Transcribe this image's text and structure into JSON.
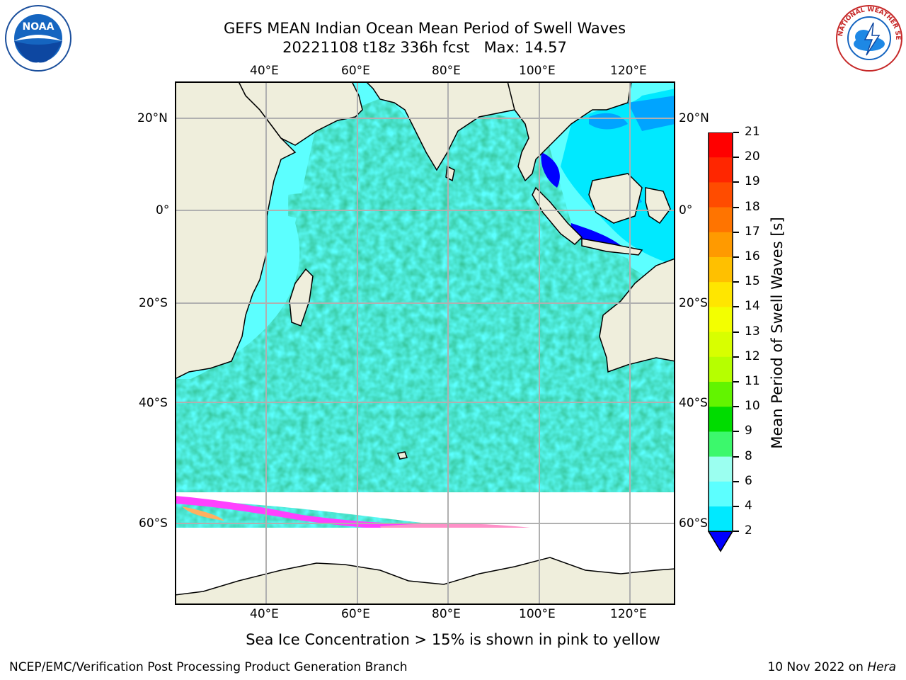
{
  "title": {
    "line1": "GEFS MEAN Indian Ocean Mean Period of Swell Waves",
    "line2": "20221108 t18z 336h fcst   Max: 14.57"
  },
  "logos": {
    "left": {
      "text": "NOAA",
      "icon": "noaa-logo-icon"
    },
    "right": {
      "text": "NATIONAL WEATHER SERVICE",
      "icon": "nws-logo-icon"
    }
  },
  "map": {
    "lon_ticks_top": [
      "40°E",
      "60°E",
      "80°E",
      "100°E",
      "120°E"
    ],
    "lon_ticks_bottom": [
      "40°E",
      "60°E",
      "80°E",
      "100°E",
      "120°E"
    ],
    "lat_ticks_left": [
      "20°N",
      "0°",
      "20°S",
      "40°S",
      "60°S"
    ],
    "lat_ticks_right": [
      "20°N",
      "0°",
      "20°S",
      "40°S",
      "60°S"
    ],
    "land_color": "#efeedc",
    "grid_color": "#b0b0b0"
  },
  "colorbar": {
    "title": "Mean Period of Swell Waves [s]",
    "levels": [
      "21",
      "20",
      "19",
      "18",
      "17",
      "16",
      "15",
      "14",
      "13",
      "12",
      "11",
      "10",
      "9",
      "8",
      "6",
      "4",
      "2"
    ],
    "colors": [
      "#ff0000",
      "#ff2600",
      "#ff4c00",
      "#ff7400",
      "#ff9a00",
      "#ffc000",
      "#ffe600",
      "#f3ff00",
      "#d8ff00",
      "#b6ff00",
      "#62f400",
      "#00dc00",
      "#3cf86c",
      "#9bfff0",
      "#5cffff",
      "#00e9ff",
      "#00a4ff",
      "#0000ff"
    ]
  },
  "caption": "Sea Ice Concentration > 15% is shown in pink to yellow",
  "footer": {
    "left": "NCEP/EMC/Verification Post Processing Product Generation Branch",
    "right_prefix": "10 Nov 2022 on ",
    "right_machine": "Hera"
  }
}
